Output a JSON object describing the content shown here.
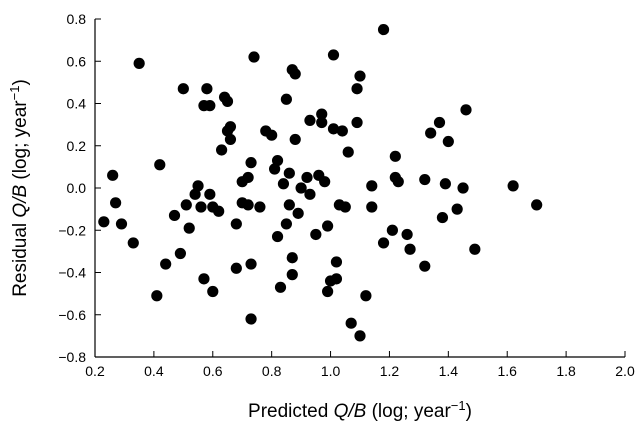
{
  "chart_data": {
    "type": "scatter",
    "xlabel": {
      "prefix": "Predicted ",
      "italic": "Q/B",
      "suffix": " (log; year",
      "sup": "−1",
      "close": ")"
    },
    "ylabel": {
      "prefix": "Residual ",
      "italic": "Q/B",
      "suffix": " (log; year",
      "sup": "−1",
      "close": ")"
    },
    "xlim": [
      0.2,
      2.0
    ],
    "ylim": [
      -0.8,
      0.8
    ],
    "xticks": [
      "0.2",
      "0.4",
      "0.6",
      "0.8",
      "1.0",
      "1.2",
      "1.4",
      "1.6",
      "1.8",
      "2.0"
    ],
    "yticks": [
      "0.8",
      "0.6",
      "0.4",
      "0.2",
      "0.0",
      "−0.2",
      "−0.4",
      "−0.6",
      "−0.8"
    ],
    "grid": false,
    "legend": "none",
    "color": "#000000",
    "points": [
      [
        0.23,
        -0.16
      ],
      [
        0.26,
        0.06
      ],
      [
        0.27,
        -0.07
      ],
      [
        0.29,
        -0.17
      ],
      [
        0.33,
        -0.26
      ],
      [
        0.35,
        0.59
      ],
      [
        0.41,
        -0.51
      ],
      [
        0.42,
        0.11
      ],
      [
        0.44,
        -0.36
      ],
      [
        0.47,
        -0.13
      ],
      [
        0.49,
        -0.31
      ],
      [
        0.5,
        0.47
      ],
      [
        0.51,
        -0.08
      ],
      [
        0.52,
        -0.19
      ],
      [
        0.54,
        -0.03
      ],
      [
        0.55,
        0.01
      ],
      [
        0.56,
        -0.09
      ],
      [
        0.57,
        0.39
      ],
      [
        0.57,
        -0.43
      ],
      [
        0.58,
        0.47
      ],
      [
        0.59,
        0.39
      ],
      [
        0.59,
        -0.03
      ],
      [
        0.6,
        -0.09
      ],
      [
        0.6,
        -0.49
      ],
      [
        0.62,
        -0.11
      ],
      [
        0.63,
        0.18
      ],
      [
        0.64,
        0.43
      ],
      [
        0.65,
        0.41
      ],
      [
        0.65,
        0.27
      ],
      [
        0.66,
        0.29
      ],
      [
        0.66,
        0.23
      ],
      [
        0.68,
        -0.38
      ],
      [
        0.68,
        -0.17
      ],
      [
        0.7,
        0.03
      ],
      [
        0.7,
        -0.07
      ],
      [
        0.72,
        -0.08
      ],
      [
        0.72,
        0.05
      ],
      [
        0.73,
        0.12
      ],
      [
        0.73,
        -0.62
      ],
      [
        0.73,
        -0.36
      ],
      [
        0.74,
        0.62
      ],
      [
        0.76,
        -0.09
      ],
      [
        0.78,
        0.27
      ],
      [
        0.8,
        0.25
      ],
      [
        0.81,
        0.09
      ],
      [
        0.82,
        0.13
      ],
      [
        0.82,
        -0.23
      ],
      [
        0.83,
        -0.47
      ],
      [
        0.84,
        0.02
      ],
      [
        0.85,
        -0.17
      ],
      [
        0.85,
        0.42
      ],
      [
        0.86,
        -0.08
      ],
      [
        0.86,
        0.07
      ],
      [
        0.87,
        -0.33
      ],
      [
        0.87,
        -0.41
      ],
      [
        0.87,
        0.56
      ],
      [
        0.88,
        0.54
      ],
      [
        0.88,
        0.23
      ],
      [
        0.89,
        -0.12
      ],
      [
        0.9,
        0.0
      ],
      [
        0.92,
        0.05
      ],
      [
        0.93,
        0.32
      ],
      [
        0.93,
        -0.03
      ],
      [
        0.95,
        -0.22
      ],
      [
        0.96,
        0.06
      ],
      [
        0.97,
        0.31
      ],
      [
        0.97,
        0.35
      ],
      [
        0.98,
        0.03
      ],
      [
        0.99,
        -0.49
      ],
      [
        0.99,
        -0.18
      ],
      [
        1.0,
        -0.44
      ],
      [
        1.01,
        0.28
      ],
      [
        1.01,
        0.63
      ],
      [
        1.02,
        -0.43
      ],
      [
        1.02,
        -0.35
      ],
      [
        1.03,
        -0.08
      ],
      [
        1.04,
        0.27
      ],
      [
        1.05,
        -0.09
      ],
      [
        1.06,
        0.17
      ],
      [
        1.07,
        -0.64
      ],
      [
        1.09,
        0.47
      ],
      [
        1.09,
        0.31
      ],
      [
        1.1,
        -0.7
      ],
      [
        1.1,
        0.53
      ],
      [
        1.12,
        -0.51
      ],
      [
        1.14,
        0.01
      ],
      [
        1.14,
        -0.09
      ],
      [
        1.18,
        0.75
      ],
      [
        1.18,
        -0.26
      ],
      [
        1.21,
        -0.2
      ],
      [
        1.22,
        0.05
      ],
      [
        1.22,
        0.15
      ],
      [
        1.23,
        0.03
      ],
      [
        1.26,
        -0.22
      ],
      [
        1.27,
        -0.29
      ],
      [
        1.32,
        -0.37
      ],
      [
        1.32,
        0.04
      ],
      [
        1.34,
        0.26
      ],
      [
        1.37,
        0.31
      ],
      [
        1.38,
        -0.14
      ],
      [
        1.39,
        0.02
      ],
      [
        1.4,
        0.22
      ],
      [
        1.43,
        -0.1
      ],
      [
        1.45,
        0.0
      ],
      [
        1.46,
        0.37
      ],
      [
        1.49,
        -0.29
      ],
      [
        1.62,
        0.01
      ],
      [
        1.7,
        -0.08
      ]
    ]
  }
}
